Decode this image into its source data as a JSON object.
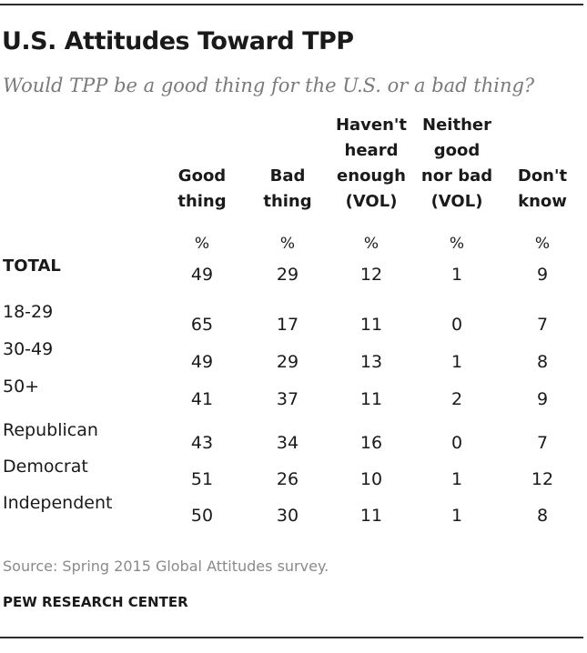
{
  "title": "U.S. Attitudes Toward TPP",
  "subtitle": "Would TPP be a good thing for the U.S. or a bad thing?",
  "source": "Source: Spring 2015 Global Attitudes survey.",
  "organization": "PEW RESEARCH CENTER",
  "chart_data": {
    "type": "table",
    "title": "U.S. Attitudes Toward TPP",
    "subtitle": "Would TPP be a good thing for the U.S. or a bad thing?",
    "columns": [
      {
        "lines": [
          "Good",
          "thing"
        ],
        "unit": "%"
      },
      {
        "lines": [
          "Bad",
          "thing"
        ],
        "unit": "%"
      },
      {
        "lines": [
          "Haven't",
          "heard",
          "enough",
          "(VOL)"
        ],
        "unit": "%"
      },
      {
        "lines": [
          "Neither",
          "good",
          "nor bad",
          "(VOL)"
        ],
        "unit": "%"
      },
      {
        "lines": [
          "Don't",
          "know"
        ],
        "unit": "%"
      }
    ],
    "rows": [
      {
        "label": "TOTAL",
        "bold": true,
        "values": [
          49,
          29,
          12,
          1,
          9
        ]
      },
      {
        "label": "18-29",
        "values": [
          65,
          17,
          11,
          0,
          7
        ]
      },
      {
        "label": "30-49",
        "values": [
          49,
          29,
          13,
          1,
          8
        ]
      },
      {
        "label": "50+",
        "values": [
          41,
          37,
          11,
          2,
          9
        ]
      },
      {
        "label": "Republican",
        "values": [
          43,
          34,
          16,
          0,
          7
        ]
      },
      {
        "label": "Democrat",
        "values": [
          51,
          26,
          10,
          1,
          12
        ]
      },
      {
        "label": "Independent",
        "values": [
          50,
          30,
          11,
          1,
          8
        ]
      }
    ]
  }
}
